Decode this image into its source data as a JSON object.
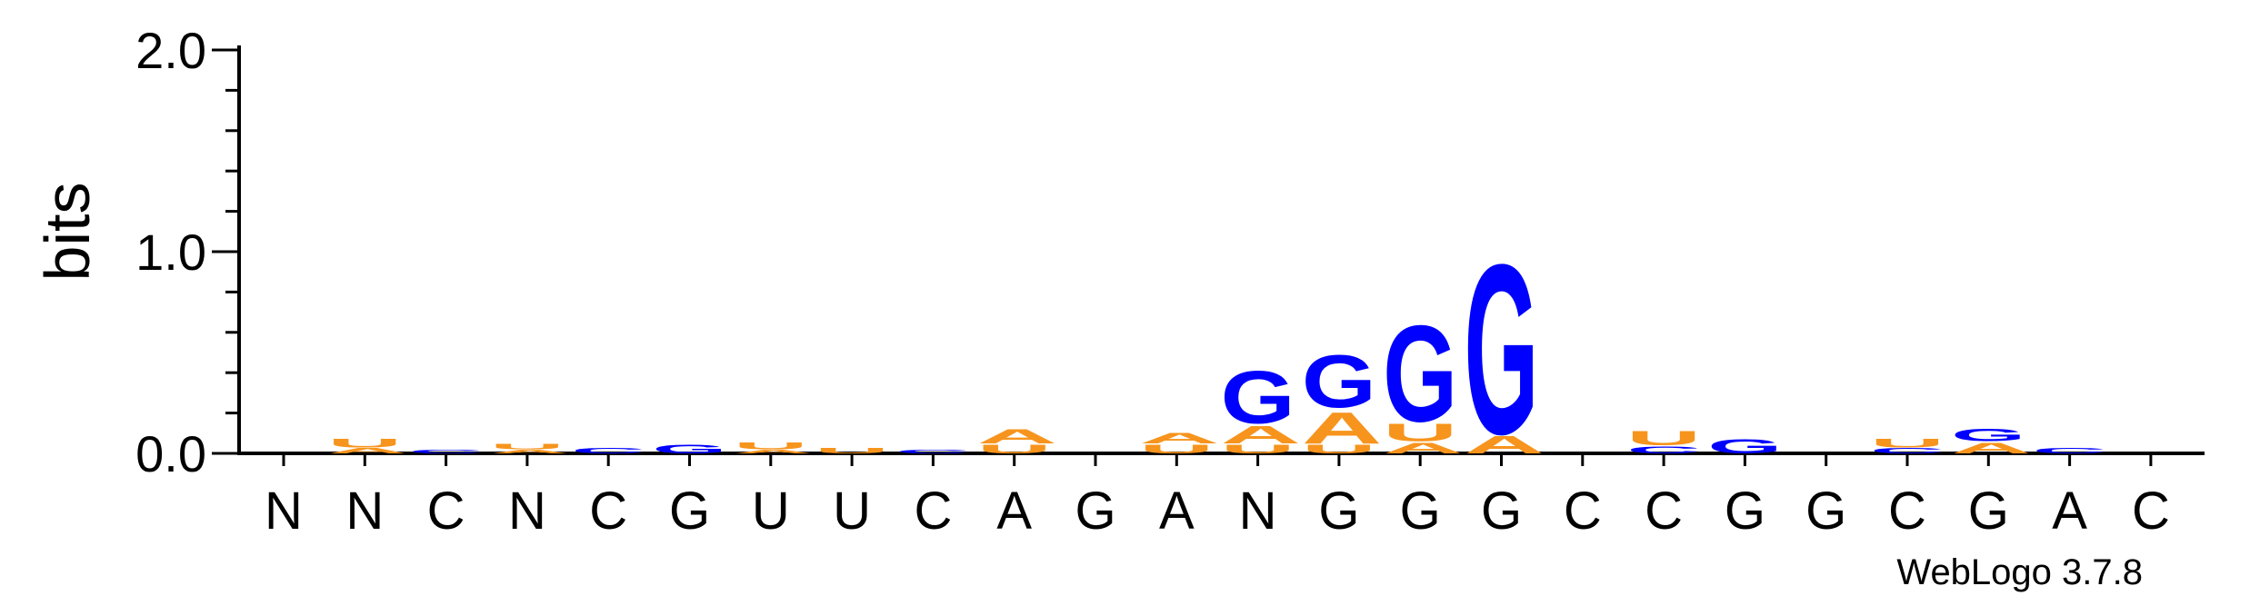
{
  "chart_data": {
    "type": "sequence-logo",
    "ylabel": "bits",
    "ylim": [
      0,
      2.0
    ],
    "y_ticks": [
      "0.0",
      "1.0",
      "2.0"
    ],
    "colors": {
      "A": "#f7941d",
      "U": "#f7941d",
      "G": "#0000ff",
      "C": "#0000ff"
    },
    "positions": [
      {
        "label": "N",
        "letters": []
      },
      {
        "label": "N",
        "letters": [
          {
            "base": "A",
            "bits": 0.03
          },
          {
            "base": "U",
            "bits": 0.05
          }
        ]
      },
      {
        "label": "C",
        "letters": [
          {
            "base": "C",
            "bits": 0.02
          }
        ]
      },
      {
        "label": "N",
        "letters": [
          {
            "base": "A",
            "bits": 0.02
          },
          {
            "base": "U",
            "bits": 0.03
          }
        ]
      },
      {
        "label": "C",
        "letters": [
          {
            "base": "C",
            "bits": 0.03
          }
        ]
      },
      {
        "label": "G",
        "letters": [
          {
            "base": "G",
            "bits": 0.05
          }
        ]
      },
      {
        "label": "U",
        "letters": [
          {
            "base": "A",
            "bits": 0.02
          },
          {
            "base": "U",
            "bits": 0.04
          }
        ]
      },
      {
        "label": "U",
        "letters": [
          {
            "base": "U",
            "bits": 0.03
          }
        ]
      },
      {
        "label": "C",
        "letters": [
          {
            "base": "C",
            "bits": 0.02
          }
        ]
      },
      {
        "label": "A",
        "letters": [
          {
            "base": "U",
            "bits": 0.05
          },
          {
            "base": "A",
            "bits": 0.08
          }
        ]
      },
      {
        "label": "G",
        "letters": []
      },
      {
        "label": "A",
        "letters": [
          {
            "base": "U",
            "bits": 0.05
          },
          {
            "base": "A",
            "bits": 0.06
          }
        ]
      },
      {
        "label": "N",
        "letters": [
          {
            "base": "U",
            "bits": 0.05
          },
          {
            "base": "A",
            "bits": 0.1
          },
          {
            "base": "G",
            "bits": 0.3
          }
        ]
      },
      {
        "label": "G",
        "letters": [
          {
            "base": "U",
            "bits": 0.05
          },
          {
            "base": "A",
            "bits": 0.18
          },
          {
            "base": "G",
            "bits": 0.3
          }
        ]
      },
      {
        "label": "G",
        "letters": [
          {
            "base": "A",
            "bits": 0.06
          },
          {
            "base": "U",
            "bits": 0.1
          },
          {
            "base": "G",
            "bits": 0.55
          }
        ]
      },
      {
        "label": "G",
        "letters": [
          {
            "base": "A",
            "bits": 0.1
          },
          {
            "base": "G",
            "bits": 0.97
          }
        ]
      },
      {
        "label": "C",
        "letters": []
      },
      {
        "label": "C",
        "letters": [
          {
            "base": "C",
            "bits": 0.04
          },
          {
            "base": "U",
            "bits": 0.08
          }
        ]
      },
      {
        "label": "G",
        "letters": [
          {
            "base": "G",
            "bits": 0.08
          }
        ]
      },
      {
        "label": "G",
        "letters": []
      },
      {
        "label": "C",
        "letters": [
          {
            "base": "C",
            "bits": 0.03
          },
          {
            "base": "U",
            "bits": 0.05
          }
        ]
      },
      {
        "label": "G",
        "letters": [
          {
            "base": "A",
            "bits": 0.06
          },
          {
            "base": "G",
            "bits": 0.07
          }
        ]
      },
      {
        "label": "A",
        "letters": [
          {
            "base": "C",
            "bits": 0.03
          }
        ]
      },
      {
        "label": "C",
        "letters": []
      }
    ]
  },
  "footer": {
    "credit": "WebLogo 3.7.8"
  }
}
